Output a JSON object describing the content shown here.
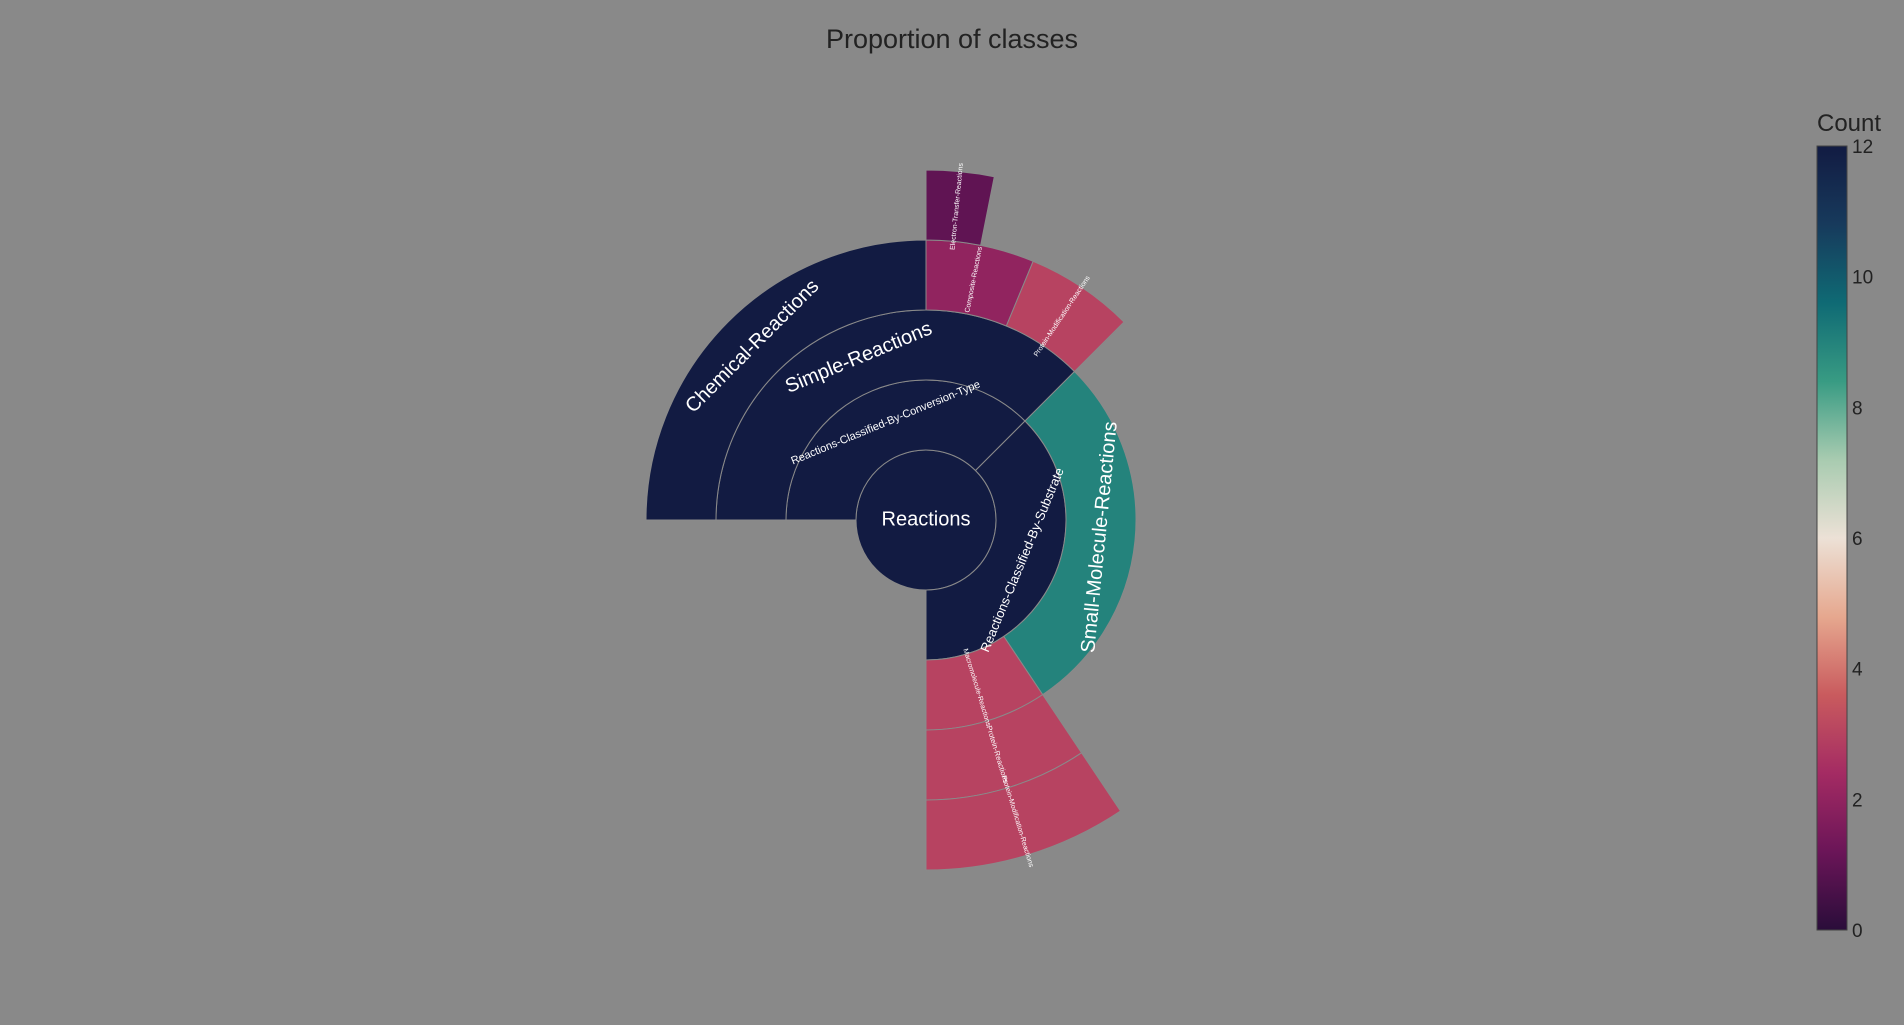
{
  "chart_data": {
    "type": "sunburst",
    "title": "Proportion of classes",
    "colorbar": {
      "title": "Count",
      "min": 0,
      "max": 12,
      "ticks": [
        0,
        2,
        4,
        6,
        8,
        10,
        12
      ],
      "colorscale": [
        "#2a0d3a",
        "#6b1558",
        "#a42b63",
        "#c95b5e",
        "#e6a88f",
        "#ece1d6",
        "#a8cbb0",
        "#389b83",
        "#0f6a74",
        "#173a5c",
        "#121b42"
      ]
    },
    "nodes": [
      {
        "id": "Reactions",
        "label": "Reactions",
        "parent": "",
        "value": 12,
        "count": 12
      },
      {
        "id": "Reactions-Classified-By-Conversion-Type",
        "label": "Reactions-Classified-By-Conversion-Type",
        "parent": "Reactions",
        "value": 6,
        "count": 12
      },
      {
        "id": "Reactions-Classified-By-Substrate",
        "label": "Reactions-Classified-By-Substrate",
        "parent": "Reactions",
        "value": 6,
        "count": 12
      },
      {
        "id": "Simple-Reactions",
        "label": "Simple-Reactions",
        "parent": "Reactions-Classified-By-Conversion-Type",
        "value": 6,
        "count": 12
      },
      {
        "id": "Chemical-Reactions",
        "label": "Chemical-Reactions",
        "parent": "Simple-Reactions",
        "value": 4,
        "count": 12
      },
      {
        "id": "Composite-Reactions",
        "label": "Composite-Reactions",
        "parent": "Simple-Reactions",
        "value": 1,
        "count": 2
      },
      {
        "id": "Protein-Modification-Reactions-1",
        "label": "Protein-Modification-Reactions",
        "parent": "Simple-Reactions",
        "value": 1,
        "count": 3
      },
      {
        "id": "Electron-Transfer-Reactions",
        "label": "Electron-Transfer-Reactions",
        "parent": "Composite-Reactions",
        "value": 0.5,
        "count": 1
      },
      {
        "id": "Small-Molecule-Reactions",
        "label": "Small-Molecule-Reactions",
        "parent": "Reactions-Classified-By-Substrate",
        "value": 4.5,
        "count": 9
      },
      {
        "id": "Macromolecule-Reactions",
        "label": "Macromolecule-Reactions",
        "parent": "Reactions-Classified-By-Substrate",
        "value": 1.5,
        "count": 3
      },
      {
        "id": "Protein-Reactions",
        "label": "Protein-Reactions",
        "parent": "Macromolecule-Reactions",
        "value": 1.5,
        "count": 3
      },
      {
        "id": "Protein-Modification-Reactions-2",
        "label": "Protein-Modification-Reactions",
        "parent": "Protein-Reactions",
        "value": 1.5,
        "count": 3
      }
    ]
  }
}
